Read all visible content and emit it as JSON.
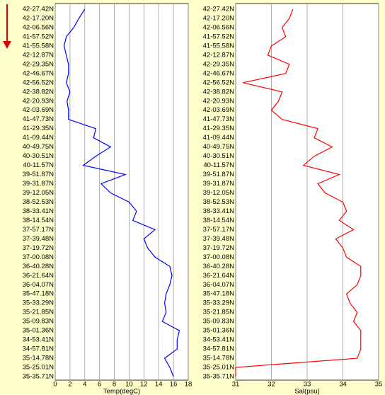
{
  "chart_data": [
    {
      "type": "line",
      "xlabel": "Temp(degC)",
      "categories": [
        "42-27.42N",
        "42-17.20N",
        "42-06.56N",
        "41-57.52N",
        "41-55.58N",
        "42-12.87N",
        "42-29.35N",
        "42-46.67N",
        "42-56.52N",
        "42-38.82N",
        "42-20.93N",
        "42-03.69N",
        "41-47.73N",
        "41-29.35N",
        "41-09.44N",
        "40-49.75N",
        "40-30.51N",
        "40-11.57N",
        "39-51.87N",
        "39-31.87N",
        "39-12.05N",
        "38-52.53N",
        "38-33.41N",
        "38-14.54N",
        "37-57.17N",
        "37-39.48N",
        "37-19.72N",
        "37-00.08N",
        "36-40.28N",
        "36-21.64N",
        "36-04.07N",
        "35-47.18N",
        "35-33.29N",
        "35-21.85N",
        "35-09.83N",
        "35-01.36N",
        "34-53.41N",
        "34-57.81N",
        "35-14.78N",
        "35-25.01N",
        "35-35.71N"
      ],
      "series": [
        {
          "color": "#0000ff",
          "values": [
            4,
            3.2,
            2.5,
            1.5,
            1.2,
            1.5,
            1.8,
            1.8,
            1.5,
            2,
            1.6,
            1.8,
            1.8,
            5.5,
            5.2,
            7.5,
            5.5,
            3.8,
            9.5,
            6.2,
            7.5,
            10,
            11,
            10.5,
            13.5,
            12,
            12.5,
            13.5,
            15.5,
            15.8,
            15.5,
            15,
            14.8,
            15,
            14.5,
            16.8,
            16.5,
            16.5,
            14.8,
            15.5,
            16
          ]
        }
      ],
      "xlim": [
        0,
        18
      ],
      "xticks": [
        0,
        2,
        4,
        6,
        8,
        10,
        12,
        14,
        16,
        18
      ],
      "grid": true
    },
    {
      "type": "line",
      "xlabel": "Sal(psu)",
      "categories": [
        "42-27.42N",
        "42-17.20N",
        "42-06.56N",
        "41-57.52N",
        "41-55.58N",
        "42-12.87N",
        "42-29.35N",
        "42-46.67N",
        "42-56.52N",
        "42-38.82N",
        "42-20.93N",
        "42-03.69N",
        "41-47.73N",
        "41-29.35N",
        "41-09.44N",
        "40-49.75N",
        "40-30.51N",
        "40-11.57N",
        "39-51.87N",
        "39-31.87N",
        "39-12.05N",
        "38-52.53N",
        "38-33.41N",
        "38-14.54N",
        "37-57.17N",
        "37-39.48N",
        "37-19.72N",
        "37-00.08N",
        "36-40.28N",
        "36-21.64N",
        "36-04.07N",
        "35-47.18N",
        "35-33.29N",
        "35-21.85N",
        "35-09.83N",
        "35-01.36N",
        "34-53.41N",
        "34-57.81N",
        "35-14.78N",
        "35-25.01N",
        "35-35.71N"
      ],
      "series": [
        {
          "color": "#ff0000",
          "values": [
            32.6,
            32.5,
            32.3,
            32.4,
            32.0,
            31.9,
            32.5,
            32.4,
            31.2,
            32.3,
            32.2,
            32.0,
            32.3,
            33.3,
            33.2,
            33.7,
            33.2,
            32.9,
            33.9,
            33.3,
            33.5,
            34.0,
            34.1,
            33.9,
            34.3,
            33.8,
            34.0,
            34.1,
            34.5,
            34.5,
            34.4,
            34.1,
            34.2,
            34.4,
            34.3,
            34.5,
            34.5,
            34.5,
            34.4,
            31.0,
            31.0
          ]
        }
      ],
      "xlim": [
        31,
        35
      ],
      "xticks": [
        31,
        32,
        33,
        34,
        35
      ],
      "grid": true
    }
  ]
}
